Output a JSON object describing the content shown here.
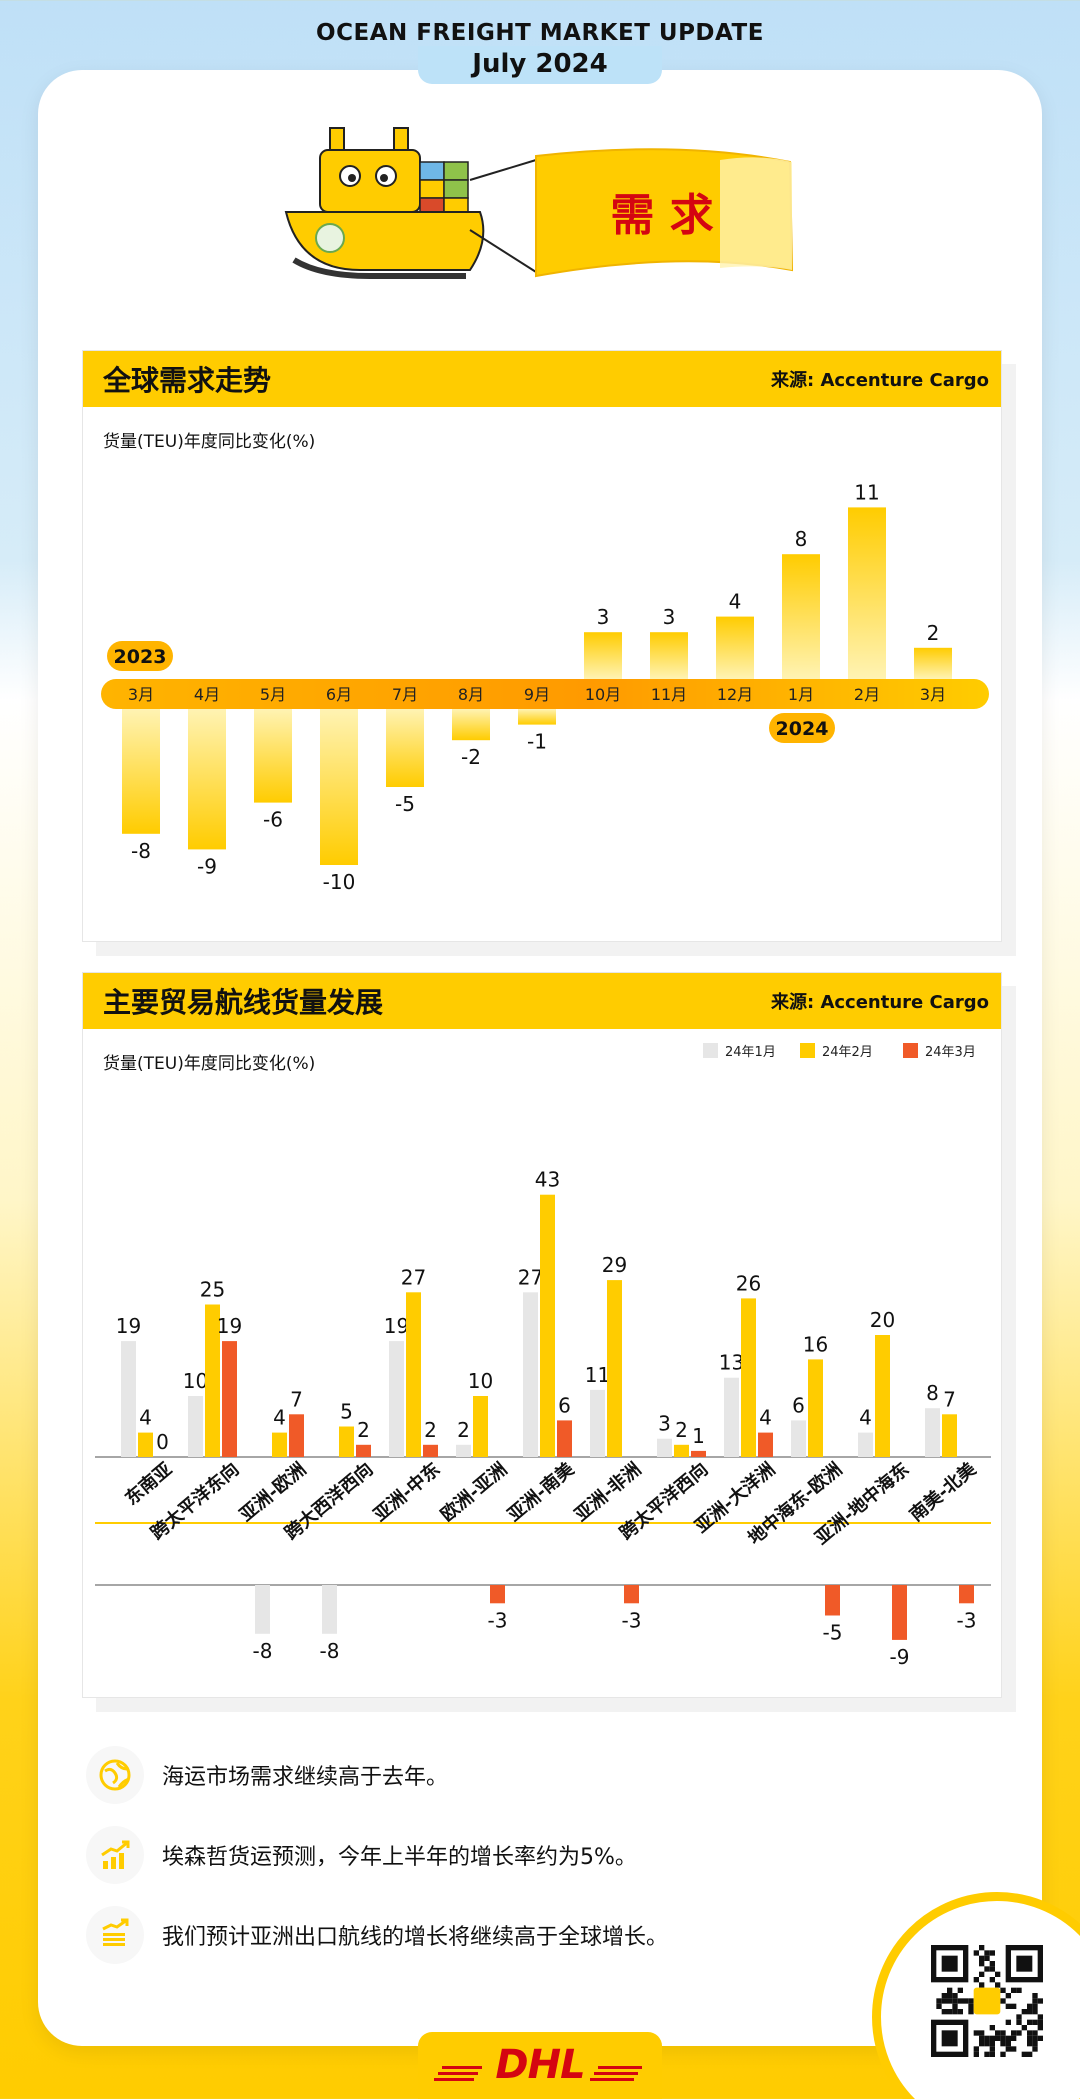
{
  "header": {
    "title": "OCEAN FREIGHT MARKET UPDATE",
    "date": "July 2024"
  },
  "hero": {
    "banner_text": "需 求"
  },
  "colors": {
    "brand_yellow": "#ffcc00",
    "bar_gray": "#e6e6e6",
    "bar_red": "#f05a28",
    "text_red": "#d40511",
    "dhl_red": "#d40511"
  },
  "panel1": {
    "title": "全球需求走势",
    "source": "来源: Accenture Cargo",
    "ylabel": "货量(TEU)年度同比变化(%)",
    "year_labels": [
      "2023",
      "2024"
    ]
  },
  "panel2": {
    "title": "主要贸易航线货量发展",
    "source": "来源: Accenture Cargo",
    "ylabel": "货量(TEU)年度同比变化(%)"
  },
  "chart_data": [
    {
      "type": "bar",
      "title": "全球需求走势",
      "ylabel": "货量(TEU)年度同比变化(%)",
      "categories": [
        "3月",
        "4月",
        "5月",
        "6月",
        "7月",
        "8月",
        "9月",
        "10月",
        "11月",
        "12月",
        "1月",
        "2月",
        "3月"
      ],
      "values": [
        -8,
        -9,
        -6,
        -10,
        -5,
        -2,
        -1,
        3,
        3,
        4,
        8,
        11,
        2
      ],
      "ylim": [
        -10,
        11
      ],
      "grid": false
    },
    {
      "type": "bar",
      "title": "主要贸易航线货量发展",
      "ylabel": "货量(TEU)年度同比变化(%)",
      "categories": [
        "东南亚",
        "跨太平洋东向",
        "亚洲-欧洲",
        "跨大西洋西向",
        "亚洲-中东",
        "欧洲-亚洲",
        "亚洲-南美",
        "亚洲-非洲",
        "跨太平洋西向",
        "亚洲-大洋洲",
        "地中海东-欧洲",
        "亚洲-地中海东",
        "南美-北美"
      ],
      "series": [
        {
          "name": "24年1月",
          "values": [
            19,
            10,
            -8,
            -8,
            19,
            2,
            27,
            11,
            3,
            13,
            6,
            4,
            8
          ]
        },
        {
          "name": "24年2月",
          "values": [
            4,
            25,
            4,
            5,
            27,
            10,
            43,
            29,
            2,
            26,
            16,
            20,
            7
          ]
        },
        {
          "name": "24年3月",
          "values": [
            0,
            19,
            7,
            2,
            2,
            -3,
            6,
            -3,
            1,
            4,
            -5,
            -9,
            -3
          ]
        }
      ],
      "legend": "top-right",
      "grid": false
    }
  ],
  "bullets": [
    {
      "icon": "globe-icon",
      "text": "海运市场需求继续高于去年。"
    },
    {
      "icon": "growth-chart-icon",
      "text": "埃森哲货运预测，今年上半年的增长率约为5%。"
    },
    {
      "icon": "growth-chart-icon",
      "text": "我们预计亚洲出口航线的增长将继续高于全球增长。"
    }
  ],
  "footer": {
    "logo_text": "DHL"
  }
}
